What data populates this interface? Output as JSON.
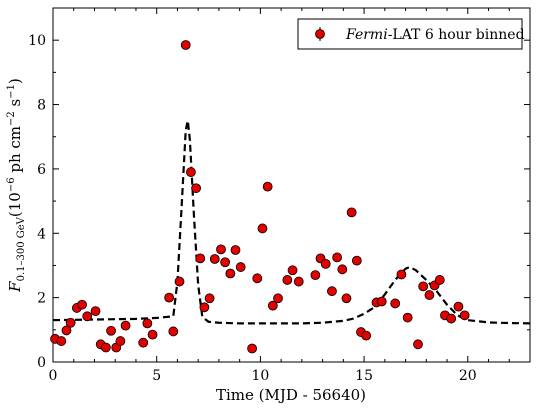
{
  "chart_data": {
    "type": "scatter",
    "xlabel": "Time (MJD - 56640)",
    "ylabel": "F",
    "ylabel_subscript": "0.1–300 GeV",
    "ylabel_units": "(10",
    "ylabel_exp1": "−6",
    "ylabel_units2": " ph cm",
    "ylabel_exp2": "−2",
    "ylabel_units3": " s",
    "ylabel_exp3": "−1",
    "ylabel_close": ")",
    "xlim": [
      0,
      23
    ],
    "ylim": [
      0,
      11
    ],
    "x_ticks": [
      0,
      5,
      10,
      15,
      20
    ],
    "y_ticks": [
      0,
      2,
      4,
      6,
      8,
      10
    ],
    "legend": {
      "position": "top-right",
      "label_italic": "Fermi",
      "label_rest": "-LAT 6 hour binned"
    },
    "colors": {
      "points": "#e00000",
      "model": "#000000"
    },
    "series": [
      {
        "name": "Fermi-LAT 6 hour binned",
        "type": "scatter",
        "points": [
          [
            0.1,
            0.72
          ],
          [
            0.4,
            0.65
          ],
          [
            0.65,
            0.98
          ],
          [
            0.85,
            1.22
          ],
          [
            1.15,
            1.68
          ],
          [
            1.4,
            1.78
          ],
          [
            1.65,
            1.42
          ],
          [
            2.05,
            1.58
          ],
          [
            2.3,
            0.55
          ],
          [
            2.55,
            0.45
          ],
          [
            2.8,
            0.97
          ],
          [
            3.05,
            0.45
          ],
          [
            3.25,
            0.65
          ],
          [
            3.5,
            1.13
          ],
          [
            4.35,
            0.6
          ],
          [
            4.55,
            1.2
          ],
          [
            4.8,
            0.85
          ],
          [
            5.6,
            2.0
          ],
          [
            5.8,
            0.95
          ],
          [
            6.1,
            2.5
          ],
          [
            6.4,
            9.85
          ],
          [
            6.65,
            5.9
          ],
          [
            6.9,
            5.4
          ],
          [
            7.1,
            3.22
          ],
          [
            7.3,
            1.7
          ],
          [
            7.55,
            1.98
          ],
          [
            7.8,
            3.2
          ],
          [
            8.1,
            3.5
          ],
          [
            8.3,
            3.1
          ],
          [
            8.55,
            2.75
          ],
          [
            8.8,
            3.48
          ],
          [
            9.05,
            2.95
          ],
          [
            9.6,
            0.42
          ],
          [
            9.85,
            2.6
          ],
          [
            10.1,
            4.15
          ],
          [
            10.35,
            5.45
          ],
          [
            10.6,
            1.75
          ],
          [
            10.85,
            1.98
          ],
          [
            11.3,
            2.55
          ],
          [
            11.55,
            2.85
          ],
          [
            11.85,
            2.5
          ],
          [
            12.65,
            2.7
          ],
          [
            12.9,
            3.22
          ],
          [
            13.15,
            3.05
          ],
          [
            13.45,
            2.2
          ],
          [
            13.7,
            3.25
          ],
          [
            13.95,
            2.88
          ],
          [
            14.15,
            1.98
          ],
          [
            14.4,
            4.65
          ],
          [
            14.65,
            3.15
          ],
          [
            14.85,
            0.93
          ],
          [
            15.1,
            0.82
          ],
          [
            15.6,
            1.85
          ],
          [
            15.85,
            1.88
          ],
          [
            16.5,
            1.82
          ],
          [
            16.8,
            2.72
          ],
          [
            17.1,
            1.38
          ],
          [
            17.6,
            0.55
          ],
          [
            17.85,
            2.35
          ],
          [
            18.15,
            2.08
          ],
          [
            18.4,
            2.38
          ],
          [
            18.65,
            2.55
          ],
          [
            18.9,
            1.45
          ],
          [
            19.2,
            1.35
          ],
          [
            19.55,
            1.72
          ],
          [
            19.85,
            1.45
          ]
        ]
      },
      {
        "name": "model",
        "type": "line",
        "style": "dashed",
        "points": [
          [
            0,
            1.3
          ],
          [
            1,
            1.31
          ],
          [
            2,
            1.32
          ],
          [
            3,
            1.33
          ],
          [
            4,
            1.34
          ],
          [
            5,
            1.37
          ],
          [
            5.8,
            1.42
          ],
          [
            6.0,
            2.5
          ],
          [
            6.2,
            4.8
          ],
          [
            6.4,
            7.2
          ],
          [
            6.5,
            7.5
          ],
          [
            6.6,
            6.9
          ],
          [
            6.8,
            4.5
          ],
          [
            7.0,
            2.4
          ],
          [
            7.2,
            1.4
          ],
          [
            7.5,
            1.25
          ],
          [
            8,
            1.22
          ],
          [
            9,
            1.2
          ],
          [
            10,
            1.2
          ],
          [
            11,
            1.2
          ],
          [
            12,
            1.2
          ],
          [
            13,
            1.22
          ],
          [
            14,
            1.28
          ],
          [
            14.5,
            1.35
          ],
          [
            15,
            1.5
          ],
          [
            15.5,
            1.7
          ],
          [
            16,
            2.1
          ],
          [
            16.5,
            2.55
          ],
          [
            17,
            2.9
          ],
          [
            17.2,
            2.95
          ],
          [
            17.5,
            2.85
          ],
          [
            18,
            2.55
          ],
          [
            18.5,
            2.2
          ],
          [
            19,
            1.78
          ],
          [
            19.5,
            1.45
          ],
          [
            20,
            1.3
          ],
          [
            21,
            1.23
          ],
          [
            22,
            1.21
          ],
          [
            23,
            1.2
          ]
        ]
      }
    ]
  }
}
